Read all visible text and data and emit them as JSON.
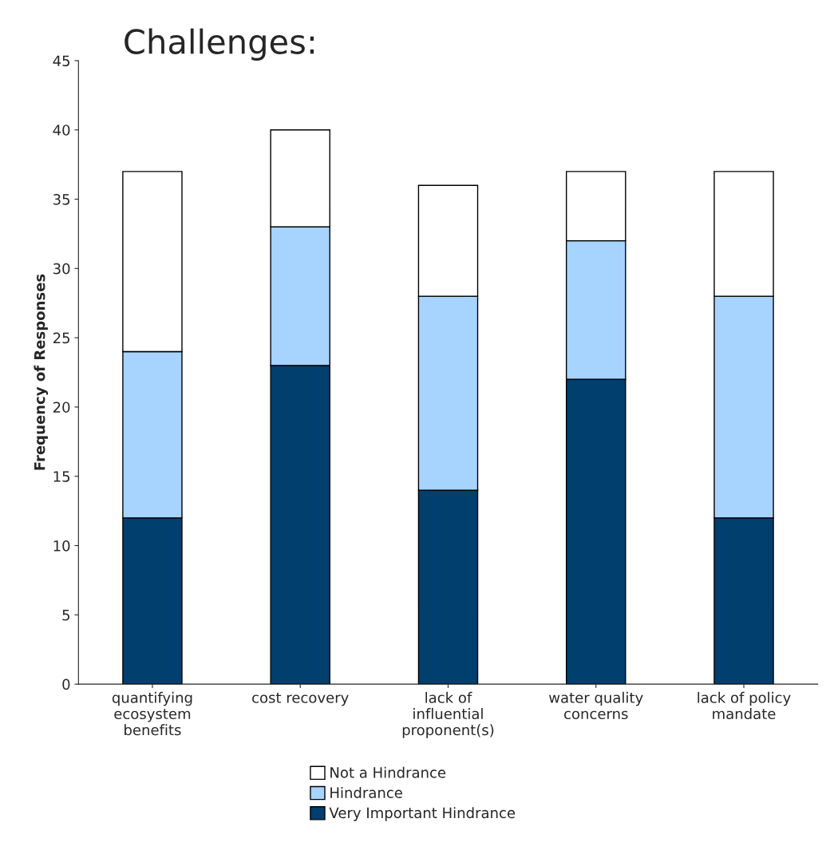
{
  "chart_data": {
    "type": "bar",
    "title": "Challenges:",
    "ylabel": "Frequency of Responses",
    "categories": [
      "quantifying\necosystem\nbenefits",
      "cost recovery",
      "lack of\ninfluential\nproponent(s)",
      "water quality\nconcerns",
      "lack of policy\nmandate"
    ],
    "stacked": true,
    "series": [
      {
        "name": "Very Important Hindrance",
        "color": "#003f6e",
        "values": [
          12,
          23,
          14,
          22,
          12
        ]
      },
      {
        "name": "Hindrance",
        "color": "#a6d3ff",
        "values": [
          12,
          10,
          14,
          10,
          16
        ]
      },
      {
        "name": "Not a Hindrance",
        "color": "#ffffff",
        "values": [
          13,
          7,
          8,
          5,
          9
        ]
      }
    ],
    "ylim": [
      0,
      45
    ],
    "yticks": [
      0,
      5,
      10,
      15,
      20,
      25,
      30,
      35,
      40,
      45
    ],
    "grid": false,
    "legend": "bottom"
  }
}
